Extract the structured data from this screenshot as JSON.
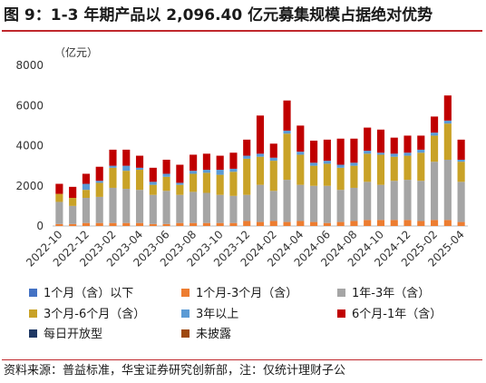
{
  "title": "图 9：1-3 年期产品以 2,096.40 亿元募集规模占据绝对优势",
  "source": "资料来源：普益标准，华宝证券研究创新部，注：仅统计理财子公",
  "chart_data": {
    "type": "bar",
    "stacked": true,
    "unit_label": "（亿元）",
    "ylim": [
      0,
      8000
    ],
    "yticks": [
      0,
      2000,
      4000,
      6000,
      8000
    ],
    "grid": false,
    "legend_position": "bottom",
    "x_tick_labels": [
      "2022-10",
      "2022-12",
      "2023-02",
      "2023-04",
      "2023-06",
      "2023-08",
      "2023-10",
      "2023-12",
      "2024-02",
      "2024-04",
      "2024-06",
      "2024-08",
      "2024-10",
      "2024-12",
      "2025-02",
      "2025-04"
    ],
    "categories": [
      "2022-10",
      "2022-11",
      "2022-12",
      "2023-01",
      "2023-02",
      "2023-03",
      "2023-04",
      "2023-05",
      "2023-06",
      "2023-07",
      "2023-08",
      "2023-09",
      "2023-10",
      "2023-11",
      "2023-12",
      "2024-01",
      "2024-02",
      "2024-03",
      "2024-04",
      "2024-05",
      "2024-06",
      "2024-07",
      "2024-08",
      "2024-09",
      "2024-10",
      "2024-11",
      "2024-12",
      "2025-01",
      "2025-02",
      "2025-03",
      "2025-04"
    ],
    "series": [
      {
        "name": "1个月（含）以下",
        "color": "#4472c4",
        "values": [
          0,
          0,
          0,
          0,
          0,
          0,
          0,
          0,
          0,
          0,
          0,
          0,
          0,
          0,
          0,
          0,
          0,
          0,
          0,
          0,
          0,
          0,
          0,
          0,
          0,
          0,
          0,
          0,
          0,
          0,
          0
        ]
      },
      {
        "name": "1个月-3个月（含）",
        "color": "#ed7d31",
        "values": [
          100,
          100,
          150,
          150,
          150,
          150,
          150,
          100,
          100,
          150,
          150,
          150,
          150,
          150,
          250,
          200,
          250,
          200,
          250,
          200,
          150,
          200,
          250,
          300,
          300,
          300,
          300,
          250,
          300,
          300,
          200
        ]
      },
      {
        "name": "1年-3年（含）",
        "color": "#a5a5a5",
        "values": [
          1100,
          900,
          1250,
          1300,
          1750,
          1700,
          1650,
          1450,
          1650,
          1400,
          1550,
          1500,
          1400,
          1350,
          1300,
          1850,
          1500,
          2100,
          1800,
          1800,
          1850,
          1600,
          1650,
          1900,
          1750,
          1950,
          2000,
          2000,
          2900,
          3000,
          2000
        ]
      },
      {
        "name": "3个月-6个月（含）",
        "color": "#c9a227",
        "values": [
          400,
          400,
          400,
          700,
          1000,
          900,
          1000,
          500,
          700,
          500,
          900,
          1000,
          1000,
          1200,
          1800,
          1400,
          1500,
          2300,
          1500,
          1000,
          1100,
          1100,
          1100,
          1400,
          1500,
          1200,
          1200,
          1400,
          1300,
          1800,
          1000
        ]
      },
      {
        "name": "3年以上",
        "color": "#5b9bd5",
        "values": [
          0,
          0,
          300,
          100,
          100,
          250,
          100,
          150,
          150,
          100,
          150,
          150,
          250,
          150,
          150,
          150,
          150,
          150,
          150,
          150,
          150,
          150,
          150,
          150,
          100,
          150,
          150,
          150,
          150,
          150,
          100
        ]
      },
      {
        "name": "6个月-1年（含）",
        "color": "#c00000",
        "values": [
          500,
          550,
          500,
          700,
          800,
          800,
          600,
          700,
          700,
          900,
          800,
          800,
          700,
          800,
          800,
          1900,
          700,
          1500,
          1300,
          1100,
          1050,
          1300,
          1200,
          1150,
          1150,
          800,
          850,
          700,
          800,
          1250,
          1000
        ]
      },
      {
        "name": "每日开放型",
        "color": "#1f3864",
        "values": [
          0,
          0,
          0,
          0,
          0,
          0,
          0,
          0,
          0,
          0,
          0,
          0,
          0,
          0,
          0,
          0,
          0,
          0,
          0,
          0,
          0,
          0,
          0,
          0,
          0,
          0,
          0,
          0,
          0,
          0,
          0
        ]
      },
      {
        "name": "未披露",
        "color": "#9e480e",
        "values": [
          0,
          0,
          0,
          0,
          0,
          0,
          0,
          0,
          0,
          0,
          0,
          0,
          0,
          0,
          0,
          0,
          0,
          0,
          0,
          0,
          0,
          0,
          0,
          0,
          0,
          0,
          0,
          0,
          0,
          0,
          0
        ]
      }
    ],
    "legend_order": [
      "1个月（含）以下",
      "1个月-3个月（含）",
      "1年-3年（含）",
      "3个月-6个月（含）",
      "3年以上",
      "6个月-1年（含）",
      "每日开放型",
      "未披露"
    ]
  }
}
